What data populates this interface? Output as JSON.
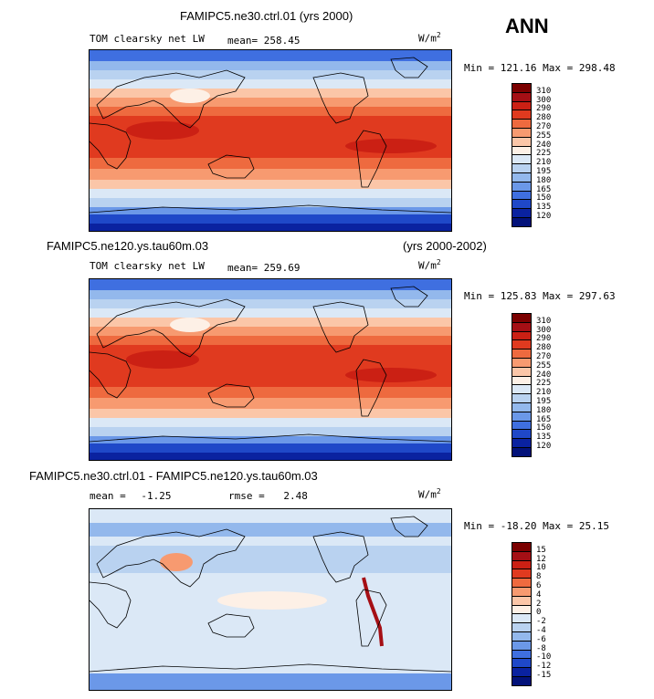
{
  "season": "ANN",
  "panels": [
    {
      "title": "FAMIPC5.ne30.ctrl.01 (yrs 2000)",
      "left_label": "TOM clearsky net LW",
      "mean_label": "mean=",
      "mean_value": "258.45",
      "units": "W/m",
      "units_exp": "2",
      "minmax": "Min = 121.16 Max = 298.48",
      "colorbar": [
        "310",
        "300",
        "290",
        "280",
        "270",
        "255",
        "240",
        "225",
        "210",
        "195",
        "180",
        "165",
        "150",
        "135",
        "120"
      ],
      "palette": "abs"
    },
    {
      "title": "FAMIPC5.ne120.ys.tau60m.03",
      "title_right": "(yrs 2000-2002)",
      "left_label": "TOM clearsky net LW",
      "mean_label": "mean=",
      "mean_value": "259.69",
      "units": "W/m",
      "units_exp": "2",
      "minmax": "Min = 125.83 Max = 297.63",
      "colorbar": [
        "310",
        "300",
        "290",
        "280",
        "270",
        "255",
        "240",
        "225",
        "210",
        "195",
        "180",
        "165",
        "150",
        "135",
        "120"
      ],
      "palette": "abs"
    },
    {
      "title": "FAMIPC5.ne30.ctrl.01 - FAMIPC5.ne120.ys.tau60m.03",
      "left_label": "mean =",
      "left_value": "-1.25",
      "rmse_label": "rmse =",
      "rmse_value": "2.48",
      "units": "W/m",
      "units_exp": "2",
      "minmax": "Min = -18.20 Max =  25.15",
      "colorbar": [
        "15",
        "12",
        "10",
        "8",
        "6",
        "4",
        "2",
        "0",
        "-2",
        "-4",
        "-6",
        "-8",
        "-10",
        "-12",
        "-15"
      ],
      "palette": "diff"
    }
  ],
  "colors": {
    "abs": [
      "#7b0000",
      "#a50f15",
      "#cb2014",
      "#e03a1f",
      "#ee6a3f",
      "#f79a70",
      "#fbc6a8",
      "#fdf0e6",
      "#dbe8f6",
      "#b9d2f0",
      "#93b8ec",
      "#6b98e8",
      "#3f6fe0",
      "#1f48c8",
      "#0a22a0",
      "#03127a"
    ],
    "diff": [
      "#7b0000",
      "#a50f15",
      "#cb2014",
      "#e03a1f",
      "#ee6a3f",
      "#f79a70",
      "#fbc6a8",
      "#fdf0e6",
      "#dbe8f6",
      "#b9d2f0",
      "#93b8ec",
      "#6b98e8",
      "#3f6fe0",
      "#1f48c8",
      "#0a22a0",
      "#03127a"
    ]
  }
}
